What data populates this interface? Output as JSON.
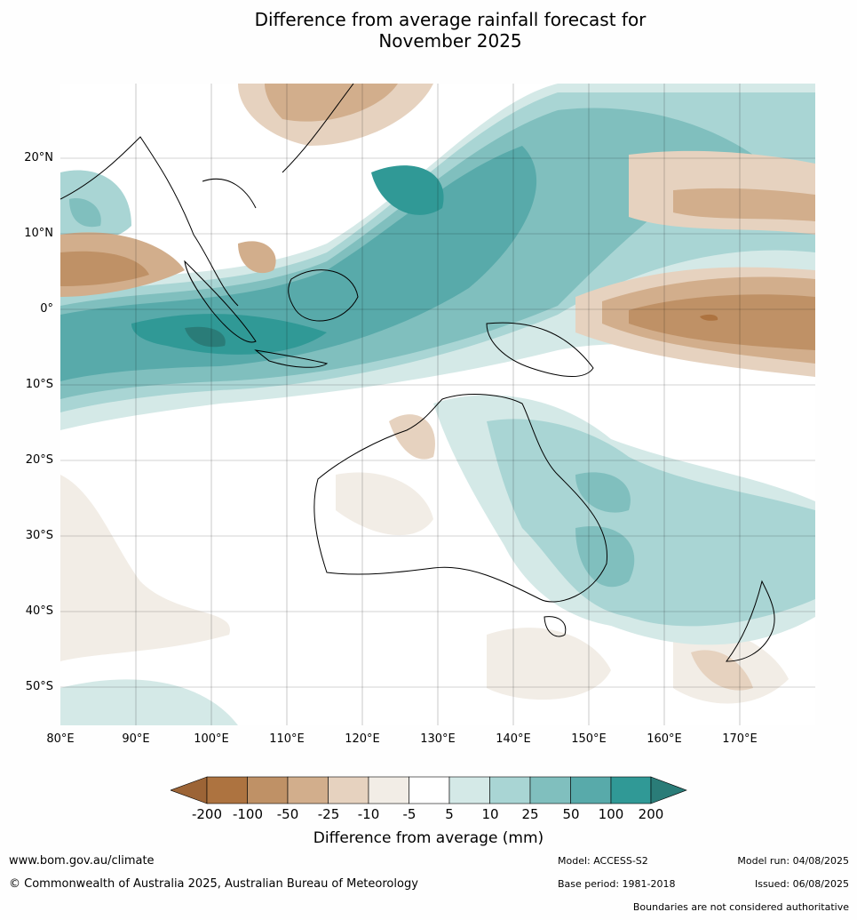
{
  "title_line1": "Difference from average rainfall forecast for",
  "title_line2": "November 2025",
  "lat_labels": [
    "20°N",
    "10°N",
    "0°",
    "10°S",
    "20°S",
    "30°S",
    "40°S",
    "50°S"
  ],
  "lon_labels": [
    "80°E",
    "90°E",
    "100°E",
    "110°E",
    "120°E",
    "130°E",
    "140°E",
    "150°E",
    "160°E",
    "170°E"
  ],
  "colorbar": {
    "ticks": [
      "-200",
      "-100",
      "-50",
      "-25",
      "-10",
      "-5",
      "5",
      "10",
      "25",
      "50",
      "100",
      "200"
    ],
    "colors": [
      "#9c6436",
      "#ad7340",
      "#bf9166",
      "#d2ae8c",
      "#e6d2bf",
      "#f2ede6",
      "#ffffff",
      "#d4e9e7",
      "#a9d5d4",
      "#80bfbe",
      "#58aaaa",
      "#309996",
      "#2a7c78"
    ],
    "label": "Difference from average (mm)"
  },
  "footer": {
    "website": "www.bom.gov.au/climate",
    "copyright": "© Commonwealth of Australia 2025, Australian Bureau of Meteorology",
    "model": "Model: ACCESS-S2",
    "base_period": "Base period: 1981-2018",
    "model_run": "Model run: 04/08/2025",
    "issued": "Issued: 06/08/2025",
    "disclaimer": "Boundaries are not considered authoritative"
  }
}
